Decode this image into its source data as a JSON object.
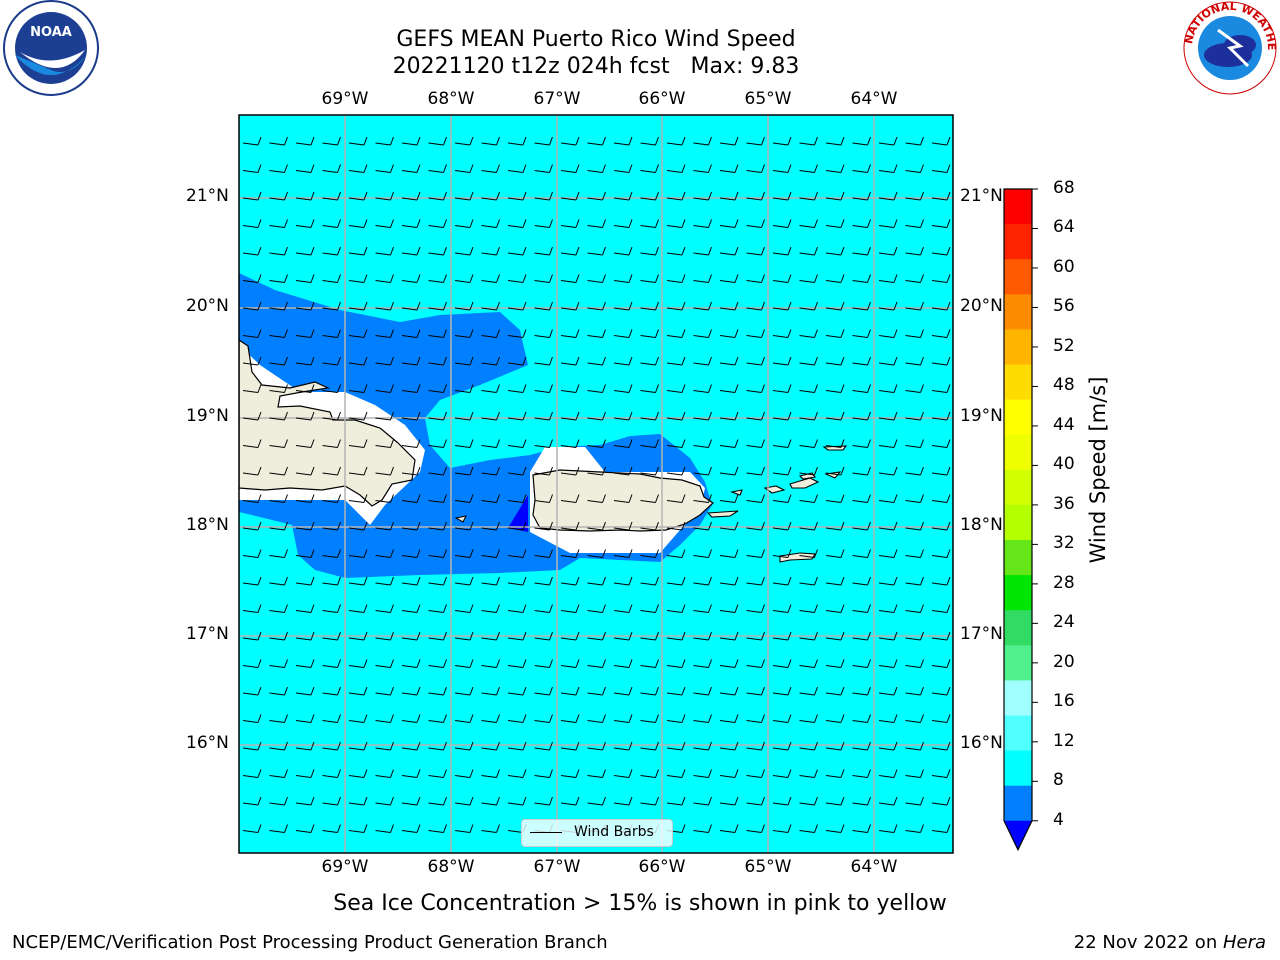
{
  "title": {
    "line1": "GEFS MEAN Puerto Rico Wind Speed",
    "line2": "20221120 t12z 024h fcst   Max: 9.83"
  },
  "subtitle": "Sea Ice Concentration > 15% is shown in pink to yellow",
  "footer": {
    "left": "NCEP/EMC/Verification Post Processing Product Generation Branch",
    "right_date": "22 Nov 2022 on ",
    "right_host": "Hera"
  },
  "map": {
    "lon_labels": [
      "69°W",
      "68°W",
      "67°W",
      "66°W",
      "65°W",
      "64°W"
    ],
    "lat_labels": [
      "21°N",
      "20°N",
      "19°N",
      "18°N",
      "17°N",
      "16°N"
    ],
    "legend_label": "Wind Barbs"
  },
  "colorbar": {
    "label": "Wind Speed [m/s]",
    "ticks": [
      "68",
      "64",
      "60",
      "56",
      "52",
      "48",
      "44",
      "40",
      "36",
      "32",
      "28",
      "24",
      "20",
      "16",
      "12",
      "8",
      "4"
    ],
    "colors": [
      "#ff0000",
      "#ff2400",
      "#ff5a00",
      "#ff8c00",
      "#ffb400",
      "#ffdc00",
      "#ffff00",
      "#f0ff00",
      "#d2ff00",
      "#b4ff00",
      "#64e619",
      "#00e600",
      "#32dc64",
      "#50f08c",
      "#a0ffff",
      "#50ffff",
      "#00ffff",
      "#0080ff",
      "#0000ff"
    ]
  },
  "logos": {
    "noaa_text": "NOAA",
    "nws_text": "NATIONAL WEATHER SERVICE"
  }
}
